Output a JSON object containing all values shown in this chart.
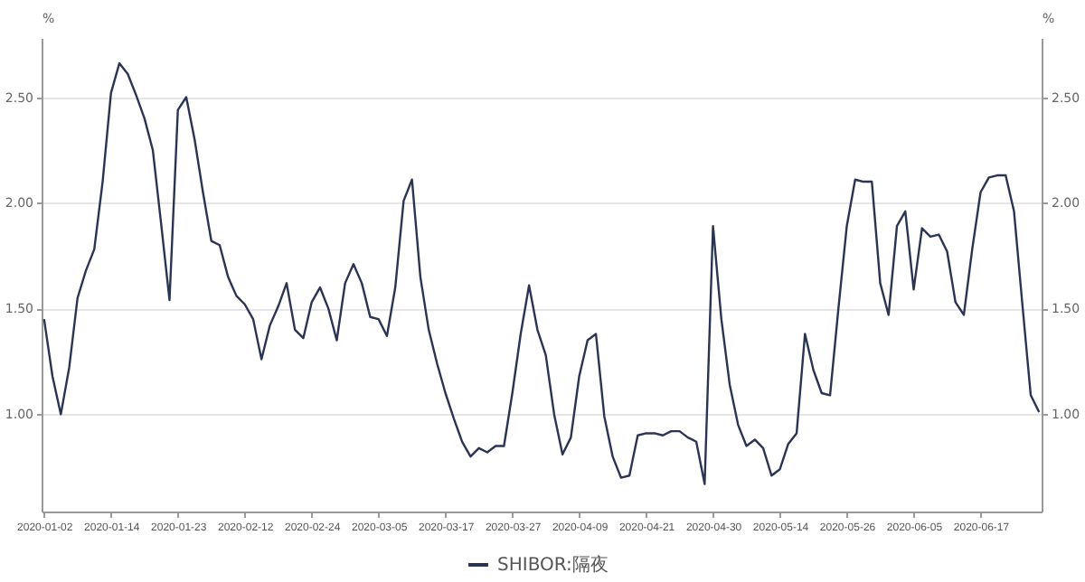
{
  "chart_data": {
    "type": "line",
    "categories": [
      "2020-01-02",
      null,
      null,
      null,
      null,
      null,
      null,
      null,
      "2020-01-14",
      null,
      null,
      null,
      null,
      null,
      null,
      null,
      "2020-01-23",
      null,
      null,
      null,
      null,
      null,
      null,
      null,
      "2020-02-12",
      null,
      null,
      null,
      null,
      null,
      null,
      null,
      "2020-02-24",
      null,
      null,
      null,
      null,
      null,
      null,
      null,
      "2020-03-05",
      null,
      null,
      null,
      null,
      null,
      null,
      null,
      "2020-03-17",
      null,
      null,
      null,
      null,
      null,
      null,
      null,
      "2020-03-27",
      null,
      null,
      null,
      null,
      null,
      null,
      null,
      "2020-04-09",
      null,
      null,
      null,
      null,
      null,
      null,
      null,
      "2020-04-21",
      null,
      null,
      null,
      null,
      null,
      null,
      null,
      "2020-04-30",
      null,
      null,
      null,
      null,
      null,
      null,
      null,
      "2020-05-14",
      null,
      null,
      null,
      null,
      null,
      null,
      null,
      "2020-05-26",
      null,
      null,
      null,
      null,
      null,
      null,
      null,
      "2020-06-05",
      null,
      null,
      null,
      null,
      null,
      null,
      null,
      "2020-06-17",
      null,
      null,
      null,
      null,
      null,
      null,
      null
    ],
    "series": [
      {
        "name": "SHIBOR:隔夜",
        "color": "#2b3553",
        "values": [
          1.45,
          1.18,
          1.0,
          1.22,
          1.55,
          1.68,
          1.78,
          2.1,
          2.52,
          2.66,
          2.61,
          2.51,
          2.4,
          2.25,
          1.9,
          1.54,
          2.44,
          2.5,
          2.3,
          2.05,
          1.82,
          1.8,
          1.65,
          1.56,
          1.52,
          1.45,
          1.26,
          1.42,
          1.51,
          1.62,
          1.4,
          1.36,
          1.53,
          1.6,
          1.5,
          1.35,
          1.62,
          1.71,
          1.62,
          1.46,
          1.45,
          1.37,
          1.6,
          2.01,
          2.11,
          1.65,
          1.4,
          1.24,
          1.1,
          0.98,
          0.87,
          0.8,
          0.84,
          0.82,
          0.85,
          0.85,
          1.1,
          1.38,
          1.61,
          1.4,
          1.28,
          1.0,
          0.81,
          0.89,
          1.18,
          1.35,
          1.38,
          0.99,
          0.8,
          0.7,
          0.71,
          0.9,
          0.91,
          0.91,
          0.9,
          0.92,
          0.92,
          0.89,
          0.87,
          0.67,
          1.89,
          1.45,
          1.14,
          0.95,
          0.85,
          0.88,
          0.84,
          0.71,
          0.74,
          0.86,
          0.91,
          1.38,
          1.21,
          1.1,
          1.09,
          1.5,
          1.89,
          2.11,
          2.1,
          2.1,
          1.62,
          1.47,
          1.89,
          1.96,
          1.59,
          1.88,
          1.84,
          1.85,
          1.77,
          1.53,
          1.47,
          1.78,
          2.05,
          2.12,
          2.13,
          2.13,
          1.96,
          1.52,
          1.09,
          1.01
        ]
      }
    ],
    "ylabel": "%",
    "y2label": "%",
    "ylim": [
      0.54,
      2.78
    ],
    "yticks": [
      {
        "value": 1,
        "label": "1.00"
      },
      {
        "value": 1.5,
        "label": "1.50"
      },
      {
        "value": 2,
        "label": "2.00"
      },
      {
        "value": 2.5,
        "label": "2.50"
      }
    ],
    "y2lim": [
      0.54,
      2.78
    ],
    "y2ticks": [
      {
        "value": 1,
        "label": "1.00"
      },
      {
        "value": 1.5,
        "label": "1.50"
      },
      {
        "value": 2,
        "label": "2.00"
      },
      {
        "value": 2.5,
        "label": "2.50"
      }
    ],
    "grid": "y",
    "legend": "bottom",
    "line_style": "solid",
    "marker": "none"
  }
}
